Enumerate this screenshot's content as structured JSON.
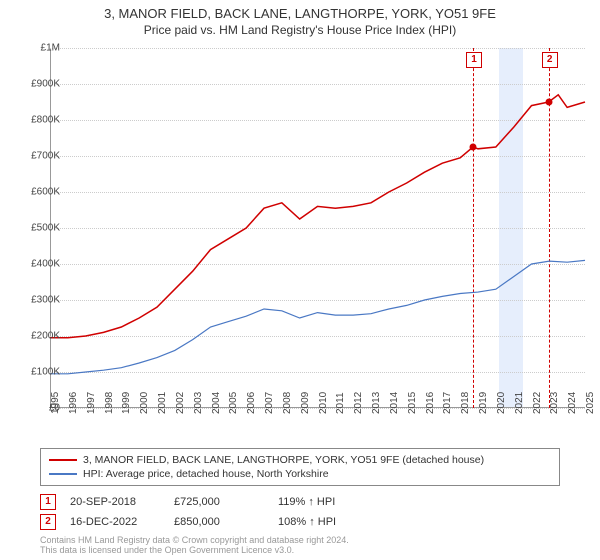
{
  "title": "3, MANOR FIELD, BACK LANE, LANGTHORPE, YORK, YO51 9FE",
  "subtitle": "Price paid vs. HM Land Registry's House Price Index (HPI)",
  "chart": {
    "type": "line",
    "background_color": "#ffffff",
    "grid_color": "#cccccc",
    "axis_color": "#999999",
    "ylim": [
      0,
      1000000
    ],
    "ytick_step": 100000,
    "yticks": [
      "£0",
      "£100K",
      "£200K",
      "£300K",
      "£400K",
      "£500K",
      "£600K",
      "£700K",
      "£800K",
      "£900K",
      "£1M"
    ],
    "xlim": [
      1995,
      2025
    ],
    "xticks": [
      1995,
      1996,
      1997,
      1998,
      1999,
      2000,
      2001,
      2002,
      2003,
      2004,
      2005,
      2006,
      2007,
      2008,
      2009,
      2010,
      2011,
      2012,
      2013,
      2014,
      2015,
      2016,
      2017,
      2018,
      2019,
      2020,
      2021,
      2022,
      2023,
      2024,
      2025
    ],
    "tick_fontsize": 10,
    "highlight_band": {
      "x_start": 2020.2,
      "x_end": 2021.5,
      "color": "#e6eefc"
    },
    "series": [
      {
        "name": "3, MANOR FIELD, BACK LANE, LANGTHORPE, YORK, YO51 9FE (detached house)",
        "color": "#d00000",
        "line_width": 1.5,
        "data": [
          [
            1995,
            195000
          ],
          [
            1996,
            195000
          ],
          [
            1997,
            200000
          ],
          [
            1998,
            210000
          ],
          [
            1999,
            225000
          ],
          [
            2000,
            250000
          ],
          [
            2001,
            280000
          ],
          [
            2002,
            330000
          ],
          [
            2003,
            380000
          ],
          [
            2004,
            440000
          ],
          [
            2005,
            470000
          ],
          [
            2006,
            500000
          ],
          [
            2007,
            555000
          ],
          [
            2008,
            570000
          ],
          [
            2009,
            525000
          ],
          [
            2010,
            560000
          ],
          [
            2011,
            555000
          ],
          [
            2012,
            560000
          ],
          [
            2013,
            570000
          ],
          [
            2014,
            600000
          ],
          [
            2015,
            625000
          ],
          [
            2016,
            655000
          ],
          [
            2017,
            680000
          ],
          [
            2018,
            695000
          ],
          [
            2018.72,
            725000
          ],
          [
            2019,
            720000
          ],
          [
            2020,
            725000
          ],
          [
            2021,
            780000
          ],
          [
            2022,
            840000
          ],
          [
            2022.96,
            850000
          ],
          [
            2023.5,
            870000
          ],
          [
            2024,
            835000
          ],
          [
            2025,
            850000
          ]
        ]
      },
      {
        "name": "HPI: Average price, detached house, North Yorkshire",
        "color": "#4a78c4",
        "line_width": 1.2,
        "data": [
          [
            1995,
            95000
          ],
          [
            1996,
            95000
          ],
          [
            1997,
            100000
          ],
          [
            1998,
            105000
          ],
          [
            1999,
            112000
          ],
          [
            2000,
            125000
          ],
          [
            2001,
            140000
          ],
          [
            2002,
            160000
          ],
          [
            2003,
            190000
          ],
          [
            2004,
            225000
          ],
          [
            2005,
            240000
          ],
          [
            2006,
            255000
          ],
          [
            2007,
            275000
          ],
          [
            2008,
            270000
          ],
          [
            2009,
            250000
          ],
          [
            2010,
            265000
          ],
          [
            2011,
            258000
          ],
          [
            2012,
            258000
          ],
          [
            2013,
            262000
          ],
          [
            2014,
            275000
          ],
          [
            2015,
            285000
          ],
          [
            2016,
            300000
          ],
          [
            2017,
            310000
          ],
          [
            2018,
            318000
          ],
          [
            2019,
            322000
          ],
          [
            2020,
            330000
          ],
          [
            2021,
            365000
          ],
          [
            2022,
            400000
          ],
          [
            2023,
            408000
          ],
          [
            2024,
            405000
          ],
          [
            2025,
            410000
          ]
        ]
      }
    ],
    "markers": [
      {
        "label": "1",
        "x": 2018.72,
        "y": 725000,
        "vline_color": "#d00000",
        "point_color": "#d00000"
      },
      {
        "label": "2",
        "x": 2022.96,
        "y": 850000,
        "vline_color": "#d00000",
        "point_color": "#d00000"
      }
    ]
  },
  "legend": {
    "items": [
      {
        "color": "#d00000",
        "label": "3, MANOR FIELD, BACK LANE, LANGTHORPE, YORK, YO51 9FE (detached house)"
      },
      {
        "color": "#4a78c4",
        "label": "HPI: Average price, detached house, North Yorkshire"
      }
    ]
  },
  "annotations": [
    {
      "marker": "1",
      "date": "20-SEP-2018",
      "price": "£725,000",
      "diff": "119% ↑ HPI"
    },
    {
      "marker": "2",
      "date": "16-DEC-2022",
      "price": "£850,000",
      "diff": "108% ↑ HPI"
    }
  ],
  "footer": {
    "line1": "Contains HM Land Registry data © Crown copyright and database right 2024.",
    "line2": "This data is licensed under the Open Government Licence v3.0."
  }
}
